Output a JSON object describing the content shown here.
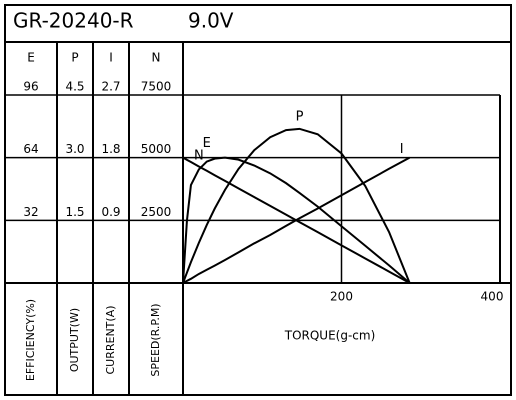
{
  "chart_data": {
    "type": "line",
    "title": "GR-20240-R",
    "voltage": "9.0V",
    "xlabel": "TORQUE(g-cm)",
    "xlim": [
      0,
      400
    ],
    "xticks": [
      200,
      400
    ],
    "grid": true,
    "x": [
      0,
      5,
      10,
      20,
      30,
      40,
      53,
      70,
      90,
      110,
      130,
      147,
      170,
      200,
      230,
      260,
      286
    ],
    "axes": [
      {
        "header": "E",
        "label": "EFFICIENCY(%)",
        "ylim": [
          0,
          96
        ],
        "yticks": [
          32,
          64,
          96
        ]
      },
      {
        "header": "P",
        "label": "OUTPUT(W)",
        "ylim": [
          0,
          4.5
        ],
        "yticks": [
          1.5,
          {
            "value": 3,
            "label": "3.0"
          },
          4.5
        ]
      },
      {
        "header": "I",
        "label": "CURRENT(A)",
        "ylim": [
          0,
          2.7
        ],
        "yticks": [
          0.9,
          1.8,
          2.7
        ]
      },
      {
        "header": "N",
        "label": "SPEED(R.P.M)",
        "ylim": [
          0,
          7500
        ],
        "yticks": [
          2500,
          5000,
          7500
        ]
      }
    ],
    "series": [
      {
        "name": "N",
        "axis": 3,
        "color": "#000000",
        "values": [
          5000,
          4913,
          4825,
          4650,
          4476,
          4301,
          4073,
          3776,
          3427,
          3077,
          2727,
          2430,
          2028,
          1503,
          979,
          455,
          0
        ]
      },
      {
        "name": "E",
        "axis": 0,
        "color": "#000000",
        "values": [
          0,
          32,
          50,
          58,
          62,
          63.5,
          64,
          63,
          60,
          56,
          51,
          46,
          39,
          29,
          19,
          9,
          0
        ]
      },
      {
        "name": "P",
        "axis": 1,
        "color": "#000000",
        "values": [
          0,
          0.25,
          0.5,
          0.96,
          1.39,
          1.78,
          2.23,
          2.73,
          3.18,
          3.49,
          3.66,
          3.69,
          3.56,
          3.1,
          2.32,
          1.22,
          0
        ]
      },
      {
        "name": "I",
        "axis": 2,
        "color": "#000000",
        "values": [
          0,
          0.03,
          0.06,
          0.13,
          0.19,
          0.25,
          0.33,
          0.44,
          0.57,
          0.69,
          0.82,
          0.93,
          1.07,
          1.26,
          1.45,
          1.64,
          1.8
        ]
      }
    ]
  }
}
